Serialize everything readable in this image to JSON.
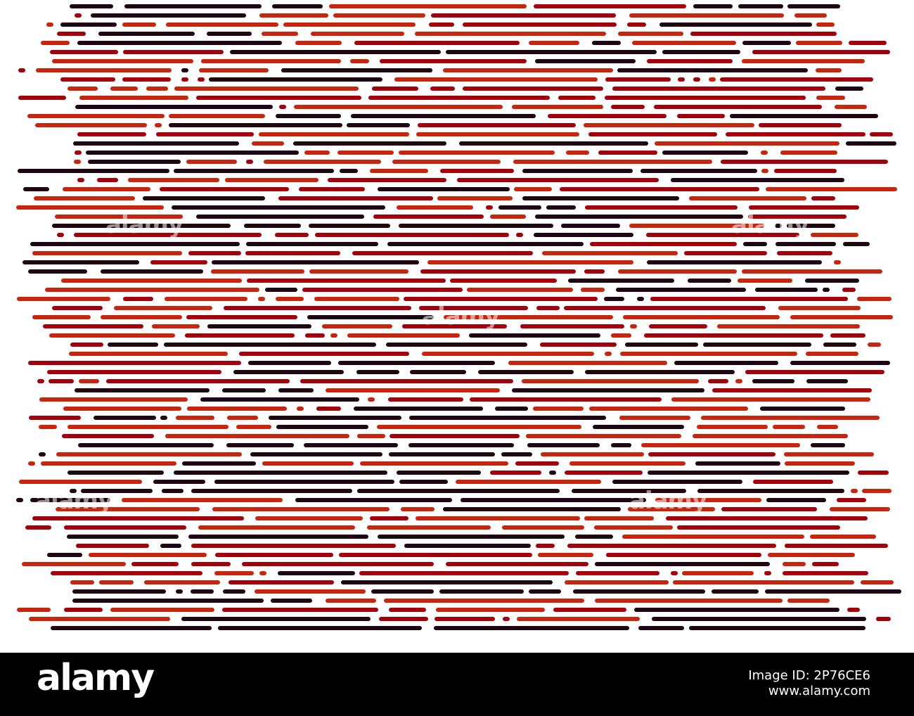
{
  "artwork": {
    "description_colors": {
      "bright_red": "#c8250f",
      "deep_red": "#a3000b",
      "dark": "#1e0712",
      "background": "#ffffff"
    }
  },
  "watermark": {
    "text": "alamy"
  },
  "footer": {
    "brand": "alamy",
    "image_id_label": "Image ID:",
    "image_id": "2P76CE6",
    "url": "www.alamy.com"
  }
}
